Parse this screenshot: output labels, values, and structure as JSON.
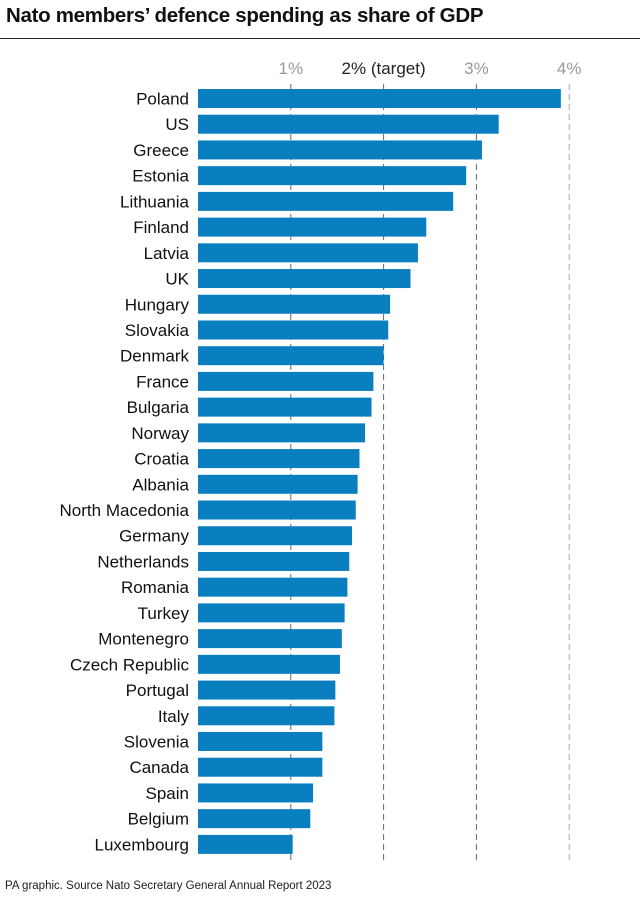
{
  "title": "Nato members’ defence spending as share of GDP",
  "footer": "PA graphic. Source Nato Secretary General Annual Report 2023",
  "chart_data": {
    "type": "bar",
    "orientation": "horizontal",
    "title": "Nato members’ defence spending as share of GDP",
    "xlim": [
      0,
      4
    ],
    "ticks": [
      {
        "value": 1,
        "label": "1%",
        "color": "#9a9a9a"
      },
      {
        "value": 2,
        "label": "2% (target)",
        "color": "#222222"
      },
      {
        "value": 3,
        "label": "3%",
        "color": "#9a9a9a"
      },
      {
        "value": 4,
        "label": "4%",
        "color": "#9a9a9a"
      }
    ],
    "grid": "vertical",
    "bar_color": "#0a7fc0",
    "categories": [
      "Poland",
      "US",
      "Greece",
      "Estonia",
      "Lithuania",
      "Finland",
      "Latvia",
      "UK",
      "Hungary",
      "Slovakia",
      "Denmark",
      "France",
      "Bulgaria",
      "Norway",
      "Croatia",
      "Albania",
      "North Macedonia",
      "Germany",
      "Netherlands",
      "Romania",
      "Turkey",
      "Montenegro",
      "Czech Republic",
      "Portugal",
      "Italy",
      "Slovenia",
      "Canada",
      "Spain",
      "Belgium",
      "Luxembourg"
    ],
    "values": [
      3.91,
      3.24,
      3.06,
      2.89,
      2.75,
      2.46,
      2.37,
      2.29,
      2.07,
      2.05,
      2.0,
      1.89,
      1.87,
      1.8,
      1.74,
      1.72,
      1.7,
      1.66,
      1.63,
      1.61,
      1.58,
      1.55,
      1.53,
      1.48,
      1.47,
      1.34,
      1.34,
      1.24,
      1.21,
      1.02
    ]
  }
}
